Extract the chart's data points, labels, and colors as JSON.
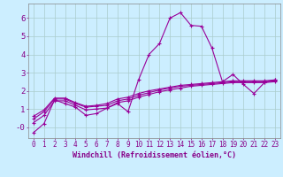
{
  "xlabel": "Windchill (Refroidissement éolien,°C)",
  "ylabel": "",
  "background_color": "#cceeff",
  "grid_color": "#aacccc",
  "line_color": "#990099",
  "xlim": [
    -0.5,
    23.5
  ],
  "ylim": [
    -0.6,
    6.8
  ],
  "xtick_labels": [
    "0",
    "1",
    "2",
    "3",
    "4",
    "5",
    "6",
    "7",
    "8",
    "9",
    "10",
    "11",
    "12",
    "13",
    "14",
    "15",
    "16",
    "17",
    "18",
    "19",
    "20",
    "21",
    "22",
    "23"
  ],
  "ytick_values": [
    0,
    1,
    2,
    3,
    4,
    5,
    6
  ],
  "ytick_labels": [
    "-0",
    "1",
    "2",
    "3",
    "4",
    "5",
    "6"
  ],
  "line1_x": [
    0,
    1,
    2,
    3,
    4,
    5,
    6,
    7,
    8,
    9,
    10,
    11,
    12,
    13,
    14,
    15,
    16,
    17,
    18,
    19,
    20,
    21,
    22,
    23
  ],
  "line1_y": [
    -0.3,
    0.2,
    1.5,
    1.3,
    1.1,
    0.65,
    0.75,
    1.05,
    1.3,
    0.85,
    2.6,
    4.0,
    4.6,
    6.0,
    6.3,
    5.6,
    5.55,
    4.35,
    2.5,
    2.9,
    2.35,
    1.85,
    2.45,
    2.6
  ],
  "line2_x": [
    0,
    1,
    2,
    3,
    4,
    5,
    6,
    7,
    8,
    9,
    10,
    11,
    12,
    13,
    14,
    15,
    16,
    17,
    18,
    19,
    20,
    21,
    22,
    23
  ],
  "line2_y": [
    0.25,
    0.65,
    1.45,
    1.45,
    1.2,
    0.95,
    1.0,
    1.05,
    1.35,
    1.45,
    1.65,
    1.8,
    1.95,
    2.05,
    2.15,
    2.25,
    2.3,
    2.35,
    2.4,
    2.45,
    2.45,
    2.45,
    2.45,
    2.5
  ],
  "line3_x": [
    0,
    1,
    2,
    3,
    4,
    5,
    6,
    7,
    8,
    9,
    10,
    11,
    12,
    13,
    14,
    15,
    16,
    17,
    18,
    19,
    20,
    21,
    22,
    23
  ],
  "line3_y": [
    0.45,
    0.85,
    1.55,
    1.55,
    1.3,
    1.1,
    1.15,
    1.2,
    1.45,
    1.55,
    1.75,
    1.9,
    2.05,
    2.15,
    2.25,
    2.3,
    2.35,
    2.4,
    2.45,
    2.5,
    2.5,
    2.5,
    2.5,
    2.55
  ],
  "line4_x": [
    0,
    1,
    2,
    3,
    4,
    5,
    6,
    7,
    8,
    9,
    10,
    11,
    12,
    13,
    14,
    15,
    16,
    17,
    18,
    19,
    20,
    21,
    22,
    23
  ],
  "line4_y": [
    0.6,
    0.95,
    1.6,
    1.6,
    1.35,
    1.15,
    1.2,
    1.3,
    1.55,
    1.65,
    1.85,
    2.0,
    2.1,
    2.2,
    2.3,
    2.35,
    2.4,
    2.45,
    2.5,
    2.55,
    2.55,
    2.55,
    2.55,
    2.6
  ],
  "marker": "+",
  "markersize": 3.5,
  "linewidth": 0.8,
  "xlabel_fontsize": 6,
  "tick_fontsize": 5.5,
  "label_color": "#880088",
  "axis_color": "#888888"
}
